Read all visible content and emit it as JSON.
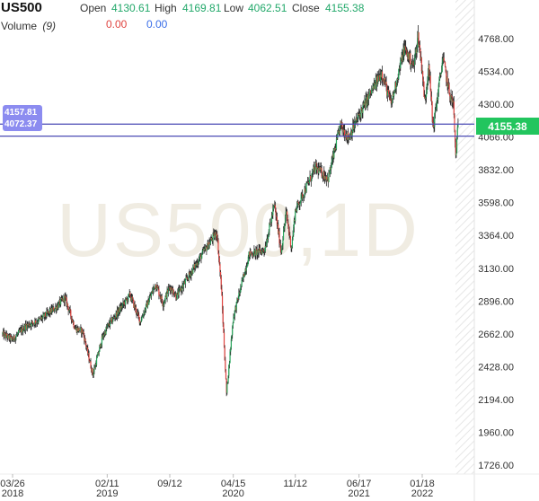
{
  "header": {
    "symbol": "US500",
    "open_label": "Open",
    "open_value": "4130.61",
    "high_label": "High",
    "high_value": "4169.81",
    "low_label": "Low",
    "low_value": "4062.51",
    "close_label": "Close",
    "close_value": "4155.38",
    "volume_label": "Volume",
    "volume_period": "(9)",
    "volume_value_1": "0.00",
    "volume_value_2": "0.00"
  },
  "watermark": "US500,1D",
  "price_tag": "4155.38",
  "line_labels": [
    "4157.81",
    "4072.37"
  ],
  "colors": {
    "up": "#26a65b",
    "down": "#e0433f",
    "accent_line": "#4b4bb5",
    "price_tag": "#22c55e",
    "line_label_bg": "#8c8cf0",
    "volume_red": "#e0433f",
    "volume_blue": "#3a6ee8"
  },
  "chart_data": {
    "type": "candlestick",
    "title": "US500",
    "timeframe": "1D",
    "ylim": [
      1726,
      4840
    ],
    "y_ticks": [
      1726.0,
      1960.0,
      2194.0,
      2428.0,
      2662.0,
      2896.0,
      3130.0,
      3364.0,
      3598.0,
      3832.0,
      4066.0,
      4300.0,
      4534.0,
      4768.0
    ],
    "x_ticks": [
      {
        "date": "2018-03-26",
        "label": "03/26",
        "year": "2018"
      },
      {
        "date": "2019-02-11",
        "label": "02/11",
        "year": "2019"
      },
      {
        "date": "2019-09-12",
        "label": "09/12",
        "year": ""
      },
      {
        "date": "2020-04-15",
        "label": "04/15",
        "year": "2020"
      },
      {
        "date": "2020-11-12",
        "label": "11/12",
        "year": ""
      },
      {
        "date": "2021-06-17",
        "label": "06/17",
        "year": "2021"
      },
      {
        "date": "2022-01-18",
        "label": "01/18",
        "year": "2022"
      }
    ],
    "horizontal_lines": [
      4157.81,
      4072.37
    ],
    "last_price": 4155.38,
    "price_path": [
      [
        "2018-02-20",
        2660
      ],
      [
        "2018-03-26",
        2620
      ],
      [
        "2018-05-10",
        2720
      ],
      [
        "2018-06-25",
        2760
      ],
      [
        "2018-08-20",
        2850
      ],
      [
        "2018-09-20",
        2920
      ],
      [
        "2018-10-25",
        2700
      ],
      [
        "2018-11-20",
        2680
      ],
      [
        "2018-12-24",
        2370
      ],
      [
        "2019-01-25",
        2630
      ],
      [
        "2019-02-11",
        2710
      ],
      [
        "2019-04-30",
        2940
      ],
      [
        "2019-06-03",
        2750
      ],
      [
        "2019-07-26",
        3020
      ],
      [
        "2019-08-20",
        2880
      ],
      [
        "2019-09-12",
        3000
      ],
      [
        "2019-10-05",
        2930
      ],
      [
        "2019-12-31",
        3230
      ],
      [
        "2020-02-19",
        3390
      ],
      [
        "2020-03-05",
        3000
      ],
      [
        "2020-03-23",
        2240
      ],
      [
        "2020-04-15",
        2780
      ],
      [
        "2020-06-08",
        3230
      ],
      [
        "2020-07-30",
        3260
      ],
      [
        "2020-09-02",
        3580
      ],
      [
        "2020-09-25",
        3250
      ],
      [
        "2020-10-12",
        3530
      ],
      [
        "2020-10-30",
        3270
      ],
      [
        "2020-11-12",
        3540
      ],
      [
        "2021-01-20",
        3850
      ],
      [
        "2021-03-04",
        3770
      ],
      [
        "2021-04-15",
        4150
      ],
      [
        "2021-05-12",
        4060
      ],
      [
        "2021-06-17",
        4220
      ],
      [
        "2021-09-02",
        4530
      ],
      [
        "2021-10-04",
        4300
      ],
      [
        "2021-11-18",
        4700
      ],
      [
        "2021-12-20",
        4570
      ],
      [
        "2022-01-04",
        4790
      ],
      [
        "2022-01-18",
        4540
      ],
      [
        "2022-01-27",
        4300
      ],
      [
        "2022-02-09",
        4590
      ],
      [
        "2022-02-24",
        4130
      ],
      [
        "2022-03-29",
        4630
      ],
      [
        "2022-04-20",
        4380
      ],
      [
        "2022-05-04",
        4300
      ],
      [
        "2022-05-12",
        3930
      ],
      [
        "2022-05-20",
        4155
      ]
    ]
  }
}
